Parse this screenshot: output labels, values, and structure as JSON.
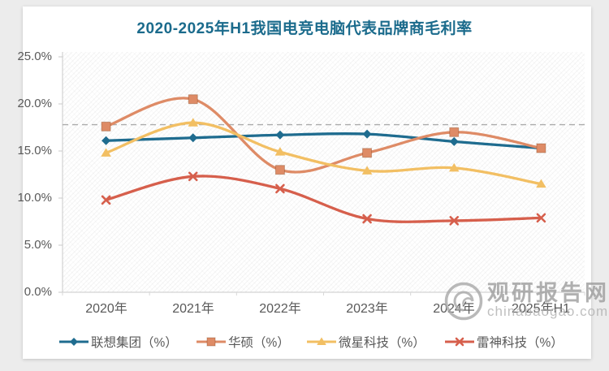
{
  "title": {
    "text": "2020-2025年H1我国电竞电脑代表品牌商毛利率",
    "color": "#1b6b8c"
  },
  "y_axis": {
    "ticks": [
      "25.0%",
      "20.0%",
      "15.0%",
      "10.0%",
      "5.0%",
      "0.0%"
    ],
    "min": 0,
    "max": 25
  },
  "chart_data": {
    "type": "line",
    "title": "2020-2025年H1我国电竞电脑代表品牌商毛利率",
    "categories": [
      "2020年",
      "2021年",
      "2022年",
      "2023年",
      "2024年",
      "2025年H1"
    ],
    "series": [
      {
        "name": "联想集团（%）",
        "marker": "diamond",
        "color": "#1f6c8f",
        "values": [
          16.1,
          16.4,
          16.7,
          16.8,
          16.0,
          15.3
        ]
      },
      {
        "name": "华硕（%）",
        "marker": "square",
        "color": "#de8b66",
        "values": [
          17.6,
          20.5,
          13.0,
          14.8,
          17.0,
          15.3
        ]
      },
      {
        "name": "微星科技（%）",
        "marker": "triangle",
        "color": "#f2bf63",
        "values": [
          14.8,
          18.0,
          14.9,
          12.9,
          13.2,
          11.5
        ]
      },
      {
        "name": "雷神科技（%）",
        "marker": "x",
        "color": "#d65f4c",
        "values": [
          9.8,
          12.3,
          11.0,
          7.8,
          7.6,
          7.9
        ]
      }
    ],
    "reference_line": {
      "value": 17.8,
      "style": "dashed",
      "color": "#ababab"
    },
    "xlabel": "",
    "ylabel": "",
    "ylim": [
      0,
      25
    ],
    "y_tick_step": 5,
    "y_tick_format": "0.0%",
    "grid": false,
    "smooth": true,
    "legend_position": "bottom"
  },
  "watermark": {
    "brand": "观研报告网",
    "site": "chinabaogao.com",
    "logo": "swirl-ring-logo",
    "color": "#9d9d9d"
  }
}
